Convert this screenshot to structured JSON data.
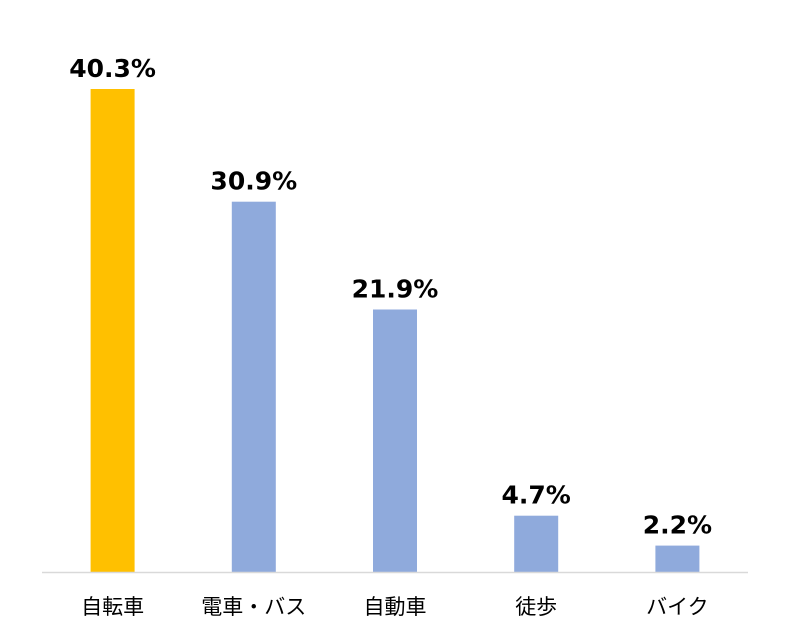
{
  "chart_data": {
    "type": "bar",
    "title": "",
    "xlabel": "",
    "ylabel": "",
    "categories": [
      "自転車",
      "電車・バス",
      "自動車",
      "徒歩",
      "バイク"
    ],
    "values": [
      40.3,
      30.9,
      21.9,
      4.7,
      2.2
    ],
    "value_labels": [
      "40.3%",
      "30.9%",
      "21.9%",
      "4.7%",
      "2.2%"
    ],
    "unit": "%",
    "ylim": [
      0,
      43
    ],
    "grid": false,
    "legend": "none",
    "colors": {
      "highlight": "#FFC000",
      "default": "#8FAADC",
      "axis": "#D9D9D9"
    },
    "highlight_index": 0
  }
}
